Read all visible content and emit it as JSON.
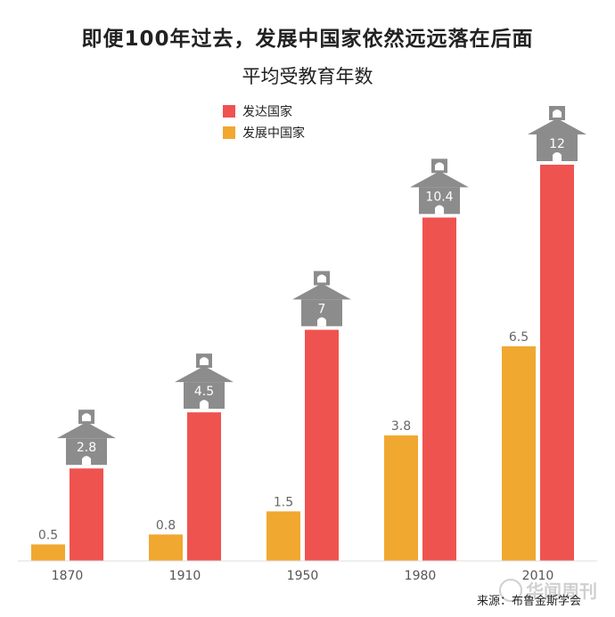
{
  "title": "即便100年过去，发展中国家依然远远落在后面",
  "subtitle": "平均受教育年数",
  "legend": [
    {
      "label": "发达国家",
      "color": "#ef5350"
    },
    {
      "label": "发展中国家",
      "color": "#f0a830"
    }
  ],
  "source": "来源：布鲁金斯学会",
  "watermark": "华闻周刊",
  "chart_data": {
    "type": "bar",
    "title": "平均受教育年数",
    "categories": [
      "1870",
      "1910",
      "1950",
      "1980",
      "2010"
    ],
    "series": [
      {
        "name": "发展中国家",
        "values": [
          0.5,
          0.8,
          1.5,
          3.8,
          6.5
        ],
        "color": "#f0a830"
      },
      {
        "name": "发达国家",
        "values": [
          2.8,
          4.5,
          7,
          10.4,
          12
        ],
        "color": "#ef5350"
      }
    ],
    "value_labels": [
      [
        "0.5",
        "0.8",
        "1.5",
        "3.8",
        "6.5"
      ],
      [
        "2.8",
        "4.5",
        "7",
        "10.4",
        "12"
      ]
    ],
    "ylim": [
      0,
      12
    ],
    "grid": false,
    "legend_position": "top"
  }
}
